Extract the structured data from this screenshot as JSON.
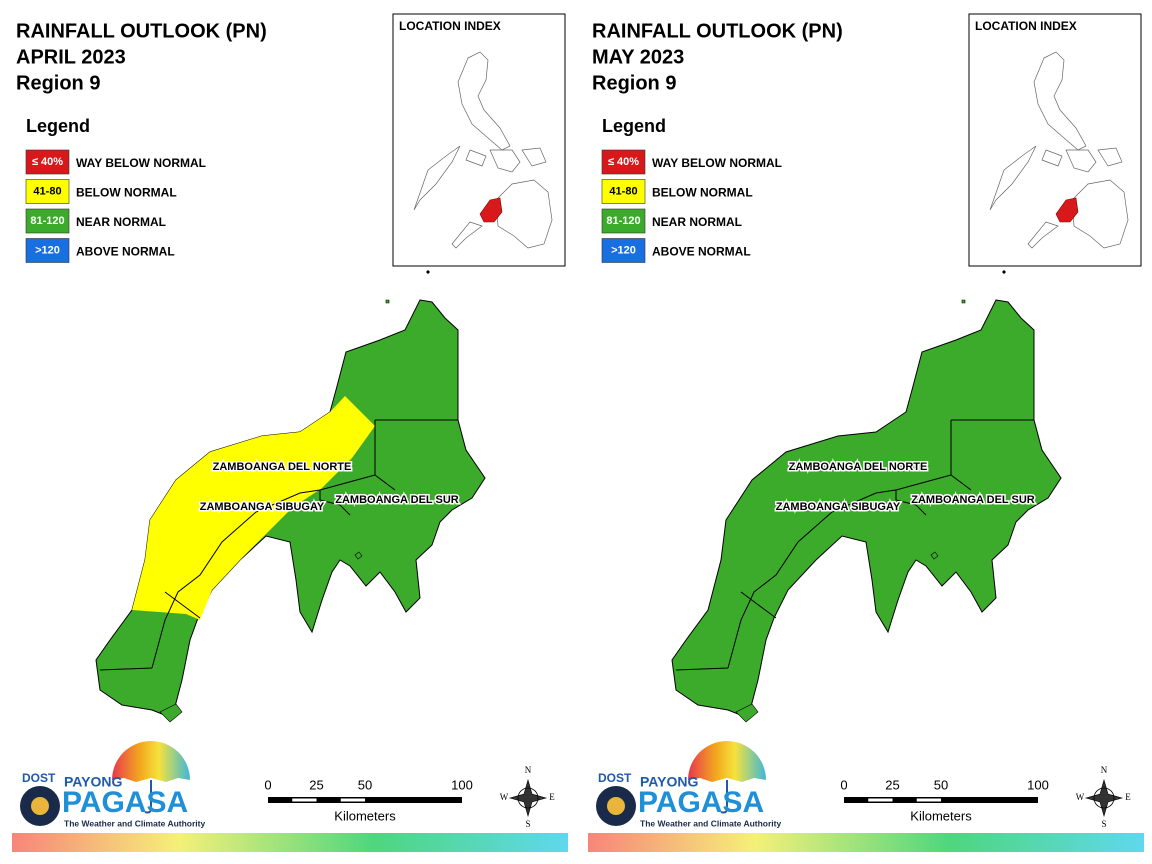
{
  "panels": [
    {
      "title": "RAINFALL OUTLOOK (PN)",
      "month": "APRIL 2023",
      "region": "Region 9",
      "legend_title": "Legend",
      "legend": [
        {
          "key": "≤ 40%",
          "label": "WAY BELOW NORMAL",
          "color": "#d7191c"
        },
        {
          "key": "41-80",
          "label": "BELOW NORMAL",
          "color": "#ffff00"
        },
        {
          "key": "81-120",
          "label": "NEAR NORMAL",
          "color": "#3caa2a"
        },
        {
          "key": ">120",
          "label": "ABOVE NORMAL",
          "color": "#1a6fe0"
        }
      ],
      "location_index": "LOCATION INDEX",
      "map_color": "#3caa2a",
      "zones": [
        {
          "color": "#ffff00"
        }
      ],
      "provinces": [
        "ZAMBOANGA DEL NORTE",
        "ZAMBOANGA SIBUGAY",
        "ZAMBOANGA DEL SUR"
      ],
      "scale": {
        "ticks": [
          0,
          25,
          50,
          100
        ],
        "unit": "Kilometers"
      },
      "compass": [
        "N",
        "E",
        "S",
        "W"
      ],
      "logo": {
        "dost": "DOST",
        "payong": "PAYONG",
        "pagasa": "PAGASA",
        "tagline": "The Weather and Climate Authority"
      }
    },
    {
      "title": "RAINFALL OUTLOOK (PN)",
      "month": "MAY 2023",
      "region": "Region 9",
      "legend_title": "Legend",
      "legend": [
        {
          "key": "≤ 40%",
          "label": "WAY BELOW NORMAL",
          "color": "#d7191c"
        },
        {
          "key": "41-80",
          "label": "BELOW NORMAL",
          "color": "#ffff00"
        },
        {
          "key": "81-120",
          "label": "NEAR NORMAL",
          "color": "#3caa2a"
        },
        {
          "key": ">120",
          "label": "ABOVE NORMAL",
          "color": "#1a6fe0"
        }
      ],
      "location_index": "LOCATION INDEX",
      "map_color": "#3caa2a",
      "zones": [],
      "provinces": [
        "ZAMBOANGA DEL NORTE",
        "ZAMBOANGA SIBUGAY",
        "ZAMBOANGA DEL SUR"
      ],
      "scale": {
        "ticks": [
          0,
          25,
          50,
          100
        ],
        "unit": "Kilometers"
      },
      "compass": [
        "N",
        "E",
        "S",
        "W"
      ],
      "logo": {
        "dost": "DOST",
        "payong": "PAYONG",
        "pagasa": "PAGASA",
        "tagline": "The Weather and Climate Authority"
      }
    }
  ]
}
